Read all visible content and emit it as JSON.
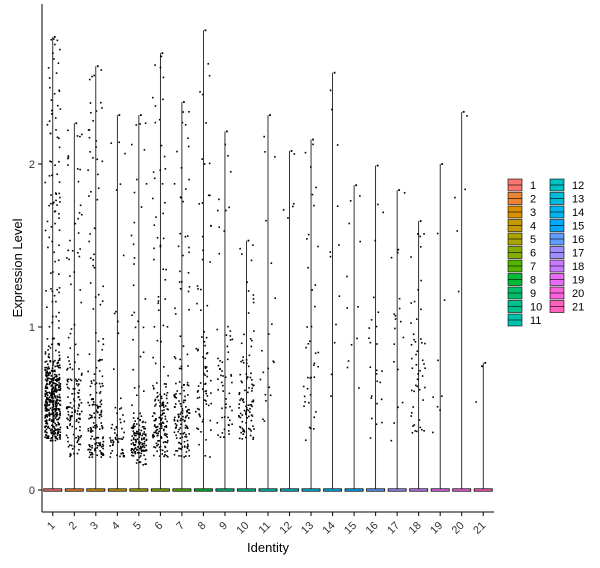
{
  "chart_data": {
    "type": "violin-scatter",
    "xlabel": "Identity",
    "ylabel": "Expression Level",
    "ylim": [
      -0.12,
      2.92
    ],
    "yticks": [
      0,
      1,
      2
    ],
    "categories": [
      "1",
      "2",
      "3",
      "4",
      "5",
      "6",
      "7",
      "8",
      "9",
      "10",
      "11",
      "12",
      "13",
      "14",
      "15",
      "16",
      "17",
      "18",
      "19",
      "20",
      "21"
    ],
    "series": [
      {
        "name": "1",
        "color": "#F8766D",
        "max": 2.78,
        "n": 500,
        "ymin": 0.3,
        "center": 0.55,
        "spread": 0.16,
        "upper": 0.25
      },
      {
        "name": "2",
        "color": "#EB8335",
        "max": 2.25,
        "n": 150,
        "ymin": 0.2,
        "center": 0.45,
        "spread": 0.2,
        "upper": 0.35
      },
      {
        "name": "3",
        "color": "#DA8F00",
        "max": 2.6,
        "n": 180,
        "ymin": 0.2,
        "center": 0.45,
        "spread": 0.2,
        "upper": 0.35
      },
      {
        "name": "4",
        "color": "#C49A00",
        "max": 2.3,
        "n": 60,
        "ymin": 0.2,
        "center": 0.32,
        "spread": 0.1,
        "upper": 0.3
      },
      {
        "name": "5",
        "color": "#A9A400",
        "max": 2.3,
        "n": 160,
        "ymin": 0.15,
        "center": 0.3,
        "spread": 0.08,
        "upper": 0.2
      },
      {
        "name": "6",
        "color": "#86AC00",
        "max": 2.68,
        "n": 170,
        "ymin": 0.2,
        "center": 0.4,
        "spread": 0.15,
        "upper": 0.25
      },
      {
        "name": "7",
        "color": "#53B400",
        "max": 2.38,
        "n": 150,
        "ymin": 0.2,
        "center": 0.4,
        "spread": 0.15,
        "upper": 0.3
      },
      {
        "name": "8",
        "color": "#00BA38",
        "max": 2.82,
        "n": 80,
        "ymin": 0.2,
        "center": 0.55,
        "spread": 0.2,
        "upper": 0.4
      },
      {
        "name": "9",
        "color": "#00BE6C",
        "max": 2.2,
        "n": 60,
        "ymin": 0.3,
        "center": 0.55,
        "spread": 0.15,
        "upper": 0.3
      },
      {
        "name": "10",
        "color": "#00C08E",
        "max": 1.53,
        "n": 100,
        "ymin": 0.3,
        "center": 0.5,
        "spread": 0.14,
        "upper": 0.3
      },
      {
        "name": "11",
        "color": "#00C1AB",
        "max": 2.3,
        "n": 20,
        "ymin": 0.35,
        "center": 0.6,
        "spread": 0.2,
        "upper": 0.5
      },
      {
        "name": "12",
        "color": "#00BFC4",
        "max": 2.08,
        "n": 5,
        "ymin": 1.5,
        "center": 1.7,
        "spread": 0.15,
        "upper": 0.5
      },
      {
        "name": "13",
        "color": "#00BBDC",
        "max": 2.15,
        "n": 40,
        "ymin": 0.3,
        "center": 0.6,
        "spread": 0.2,
        "upper": 0.4
      },
      {
        "name": "14",
        "color": "#00B4F0",
        "max": 2.56,
        "n": 12,
        "ymin": 0.5,
        "center": 0.9,
        "spread": 0.3,
        "upper": 0.6
      },
      {
        "name": "15",
        "color": "#00A9FF",
        "max": 1.87,
        "n": 12,
        "ymin": 0.5,
        "center": 1.0,
        "spread": 0.3,
        "upper": 0.5
      },
      {
        "name": "16",
        "color": "#619CFF",
        "max": 1.99,
        "n": 25,
        "ymin": 0.25,
        "center": 0.9,
        "spread": 0.35,
        "upper": 0.5
      },
      {
        "name": "17",
        "color": "#9F8CFF",
        "max": 1.84,
        "n": 20,
        "ymin": 0.3,
        "center": 0.8,
        "spread": 0.3,
        "upper": 0.5
      },
      {
        "name": "18",
        "color": "#C77CFF",
        "max": 1.65,
        "n": 50,
        "ymin": 0.35,
        "center": 0.7,
        "spread": 0.25,
        "upper": 0.4
      },
      {
        "name": "19",
        "color": "#E76BF3",
        "max": 2.0,
        "n": 8,
        "ymin": 0.3,
        "center": 0.5,
        "spread": 0.2,
        "upper": 0.5
      },
      {
        "name": "20",
        "color": "#FA62DB",
        "max": 2.32,
        "n": 5,
        "ymin": 0.8,
        "center": 1.5,
        "spread": 0.5,
        "upper": 0.5
      },
      {
        "name": "21",
        "color": "#FF62BC",
        "max": 0.78,
        "n": 3,
        "ymin": 0.5,
        "center": 0.7,
        "spread": 0.1,
        "upper": 0.1
      }
    ],
    "legend": {
      "position": "right",
      "columns": 2
    }
  }
}
